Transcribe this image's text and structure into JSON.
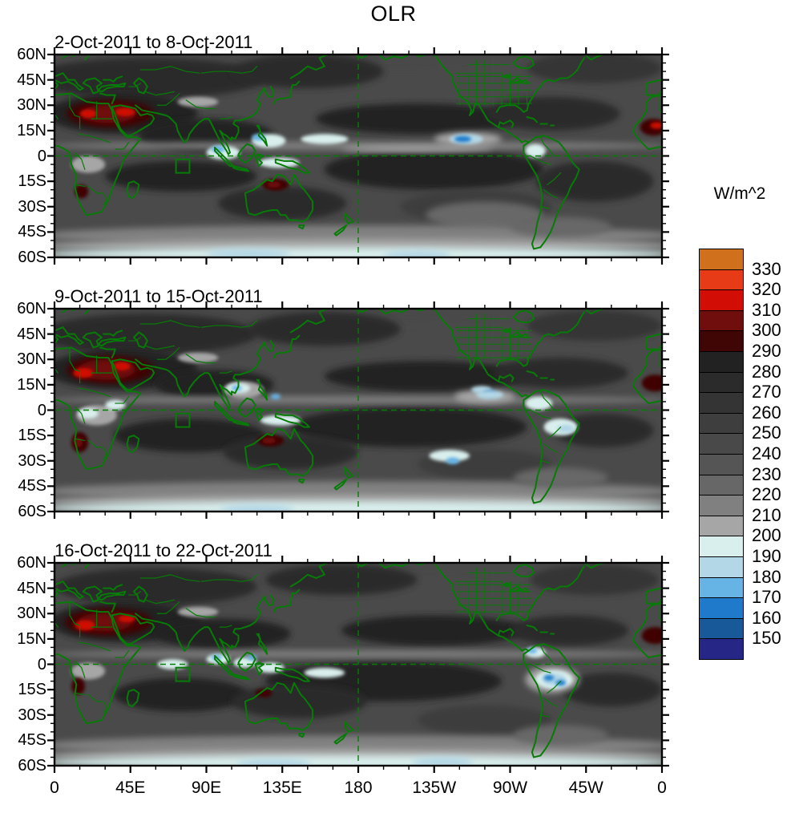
{
  "chart_data": {
    "type": "heatmap",
    "subtype": "filled-contour-map-panels",
    "title": "OLR",
    "units_label": "W/m^2",
    "lon_range": [
      0,
      360
    ],
    "lat_range": [
      -60,
      60
    ],
    "axes": {
      "lon_tick_labels": [
        "0",
        "45E",
        "90E",
        "135E",
        "180",
        "135W",
        "90W",
        "45W",
        "0"
      ],
      "lon_tick_degrees": [
        0,
        45,
        90,
        135,
        180,
        225,
        270,
        315,
        360
      ],
      "lon_minor_step": 15,
      "lat_tick_labels": [
        "60N",
        "45N",
        "30N",
        "15N",
        "0",
        "15S",
        "30S",
        "45S",
        "60S"
      ],
      "lat_tick_degrees": [
        60,
        45,
        30,
        15,
        0,
        -15,
        -30,
        -45,
        -60
      ],
      "lat_minor_step": 5
    },
    "colorbar": {
      "unit_label": "W/m^2",
      "tick_labels": [
        "330",
        "320",
        "310",
        "300",
        "290",
        "280",
        "270",
        "260",
        "250",
        "240",
        "230",
        "220",
        "210",
        "200",
        "190",
        "180",
        "170",
        "160",
        "150"
      ],
      "colors_top_to_bottom": [
        "#d0701d",
        "#e73b17",
        "#d20d05",
        "#700d0d",
        "#400505",
        "#222222",
        "#2b2b2b",
        "#343434",
        "#3e3e3e",
        "#494949",
        "#555555",
        "#676767",
        "#808080",
        "#a6a6a6",
        "#d9efed",
        "#b3d7e6",
        "#66b3e6",
        "#1f7acc",
        "#185a99",
        "#262687"
      ]
    },
    "palette": {
      "330": "#d0701d",
      "320": "#e73b17",
      "310": "#d20d05",
      "300": "#700d0d",
      "290": "#400505",
      "280": "#222222",
      "270": "#2b2b2b",
      "260": "#343434",
      "250": "#3e3e3e",
      "240": "#494949",
      "230": "#555555",
      "220": "#676767",
      "210": "#808080",
      "200": "#a6a6a6",
      "190": "#d9efed",
      "180": "#b3d7e6",
      "170": "#66b3e6",
      "160": "#1f7acc",
      "150": "#185a99",
      "140": "#262687"
    },
    "map_style": {
      "base_gray": "#4a4a4a",
      "coastline_color": "#077b07",
      "frame_color": "#000000",
      "dashed_reference_color": "#077b07"
    },
    "region_box": {
      "lon_min": 72,
      "lon_max": 80,
      "lat_min": -10,
      "lat_max": -2
    },
    "panels": [
      {
        "title": "2-Oct-2011 to 8-Oct-2011",
        "features": [
          [
            "240",
            180,
            58,
            200,
            7
          ],
          [
            "270",
            55,
            46,
            70,
            12
          ],
          [
            "270",
            150,
            50,
            45,
            10
          ],
          [
            "260",
            320,
            52,
            40,
            9
          ],
          [
            "280",
            40,
            25,
            45,
            12
          ],
          [
            "280",
            90,
            12,
            40,
            10
          ],
          [
            "280",
            215,
            22,
            60,
            9
          ],
          [
            "270",
            295,
            25,
            40,
            10
          ],
          [
            "280",
            225,
            -8,
            65,
            12
          ],
          [
            "280",
            75,
            -12,
            45,
            9
          ],
          [
            "270",
            135,
            -28,
            38,
            10
          ],
          [
            "270",
            320,
            -15,
            35,
            12
          ],
          [
            "250",
            250,
            -30,
            45,
            10
          ],
          [
            "220",
            255,
            -35,
            35,
            8
          ],
          [
            "210",
            180,
            -47,
            190,
            6
          ],
          [
            "200",
            180,
            -53,
            190,
            4
          ],
          [
            "190",
            180,
            -58,
            190,
            4
          ],
          [
            "180",
            115,
            -58,
            25,
            3
          ],
          [
            "180",
            215,
            -59,
            20,
            3
          ],
          [
            "210",
            180,
            6,
            185,
            2.4
          ],
          [
            "200",
            215,
            4,
            45,
            1.8
          ],
          [
            "200",
            20,
            -5,
            10,
            5
          ],
          [
            "190",
            100,
            2,
            10,
            4
          ],
          [
            "170",
            97,
            4,
            4,
            2
          ],
          [
            "190",
            127,
            9,
            10,
            4
          ],
          [
            "170",
            121,
            11,
            4,
            2
          ],
          [
            "190",
            160,
            10,
            14,
            3
          ],
          [
            "190",
            133,
            -4,
            12,
            3
          ],
          [
            "200",
            245,
            10,
            20,
            4
          ],
          [
            "180",
            244,
            10,
            10,
            3
          ],
          [
            "160",
            242,
            10,
            5,
            1.8
          ],
          [
            "190",
            285,
            3,
            6,
            4
          ],
          [
            "200",
            85,
            32,
            12,
            3
          ],
          [
            "220",
            300,
            -42,
            30,
            6
          ],
          [
            "290",
            33,
            25,
            26,
            8
          ],
          [
            "300",
            32,
            25,
            16,
            5.5
          ],
          [
            "310",
            20,
            25,
            5,
            2.5
          ],
          [
            "310",
            42,
            26,
            6,
            2.5
          ],
          [
            "290",
            355,
            17,
            8,
            5
          ],
          [
            "310",
            357,
            18,
            4,
            2
          ],
          [
            "290",
            131,
            -17,
            8,
            3.5
          ],
          [
            "300",
            130,
            -17,
            4,
            1.8
          ],
          [
            "290",
            16,
            -21,
            4,
            4
          ]
        ]
      },
      {
        "title": "9-Oct-2011 to 15-Oct-2011",
        "features": [
          [
            "240",
            180,
            58,
            200,
            7
          ],
          [
            "270",
            55,
            45,
            65,
            12
          ],
          [
            "270",
            160,
            48,
            45,
            10
          ],
          [
            "260",
            320,
            50,
            40,
            9
          ],
          [
            "280",
            40,
            24,
            45,
            12
          ],
          [
            "280",
            95,
            15,
            35,
            9
          ],
          [
            "280",
            220,
            20,
            60,
            9
          ],
          [
            "270",
            300,
            22,
            40,
            9
          ],
          [
            "280",
            210,
            -10,
            70,
            12
          ],
          [
            "280",
            80,
            -15,
            45,
            10
          ],
          [
            "270",
            140,
            -25,
            40,
            10
          ],
          [
            "270",
            325,
            -12,
            30,
            10
          ],
          [
            "250",
            255,
            -32,
            40,
            9
          ],
          [
            "210",
            180,
            -48,
            190,
            6
          ],
          [
            "200",
            180,
            -54,
            190,
            4
          ],
          [
            "190",
            180,
            -58,
            190,
            4
          ],
          [
            "180",
            120,
            -59,
            22,
            3
          ],
          [
            "210",
            180,
            6,
            185,
            2.2
          ],
          [
            "200",
            25,
            -3,
            12,
            6
          ],
          [
            "190",
            20,
            -2,
            6,
            3
          ],
          [
            "190",
            36,
            3,
            6,
            3
          ],
          [
            "200",
            112,
            12,
            12,
            5
          ],
          [
            "190",
            109,
            13,
            7,
            3
          ],
          [
            "170",
            108,
            13,
            3,
            1.6
          ],
          [
            "170",
            131,
            8,
            3,
            1.6
          ],
          [
            "190",
            134,
            -6,
            12,
            3
          ],
          [
            "200",
            255,
            8,
            18,
            4
          ],
          [
            "180",
            253,
            12,
            6,
            2.2
          ],
          [
            "160",
            258,
            10,
            4,
            1.6
          ],
          [
            "180",
            258,
            9,
            8,
            2.5
          ],
          [
            "190",
            234,
            -27,
            12,
            3.5
          ],
          [
            "170",
            236,
            -30,
            4,
            2
          ],
          [
            "190",
            287,
            4,
            8,
            4
          ],
          [
            "190",
            300,
            -10,
            10,
            5
          ],
          [
            "180",
            303,
            -11,
            5,
            2.5
          ],
          [
            "200",
            85,
            31,
            12,
            3
          ],
          [
            "220",
            300,
            -40,
            28,
            6
          ],
          [
            "290",
            33,
            24,
            26,
            8
          ],
          [
            "300",
            31,
            24,
            17,
            6
          ],
          [
            "310",
            17,
            22,
            6,
            3
          ],
          [
            "310",
            40,
            26,
            5,
            2.5
          ],
          [
            "290",
            356,
            16,
            8,
            5
          ],
          [
            "290",
            128,
            -18,
            8,
            3.5
          ],
          [
            "300",
            127,
            -18,
            4,
            1.8
          ],
          [
            "290",
            15,
            -19,
            5,
            6
          ],
          [
            "300",
            14,
            -19,
            2.5,
            3
          ]
        ]
      },
      {
        "title": "16-Oct-2011 to 22-Oct-2011",
        "features": [
          [
            "240",
            180,
            58,
            200,
            7
          ],
          [
            "270",
            60,
            46,
            60,
            11
          ],
          [
            "270",
            170,
            50,
            45,
            9
          ],
          [
            "260",
            320,
            50,
            38,
            9
          ],
          [
            "280",
            42,
            25,
            45,
            12
          ],
          [
            "280",
            100,
            18,
            40,
            9
          ],
          [
            "280",
            225,
            20,
            55,
            9
          ],
          [
            "270",
            305,
            20,
            35,
            9
          ],
          [
            "280",
            195,
            -10,
            70,
            12
          ],
          [
            "280",
            75,
            -18,
            40,
            10
          ],
          [
            "270",
            145,
            -22,
            40,
            10
          ],
          [
            "270",
            330,
            -15,
            30,
            10
          ],
          [
            "250",
            255,
            -33,
            40,
            9
          ],
          [
            "210",
            180,
            -48,
            190,
            6
          ],
          [
            "200",
            180,
            -54,
            190,
            4
          ],
          [
            "190",
            180,
            -58,
            190,
            4
          ],
          [
            "180",
            130,
            -59,
            22,
            3
          ],
          [
            "180",
            230,
            -58,
            18,
            3
          ],
          [
            "210",
            180,
            6,
            185,
            2.2
          ],
          [
            "200",
            20,
            -4,
            10,
            5
          ],
          [
            "190",
            70,
            0,
            9,
            3
          ],
          [
            "190",
            97,
            3,
            7,
            3
          ],
          [
            "170",
            96,
            4,
            3,
            1.6
          ],
          [
            "190",
            113,
            1,
            7,
            3
          ],
          [
            "170",
            117,
            4,
            3,
            1.5
          ],
          [
            "190",
            128,
            -2,
            8,
            3
          ],
          [
            "190",
            160,
            -5,
            12,
            3
          ],
          [
            "200",
            295,
            -9,
            16,
            8
          ],
          [
            "190",
            296,
            -9,
            11,
            5.5
          ],
          [
            "180",
            296,
            -9,
            7,
            3.5
          ],
          [
            "160",
            293,
            -8,
            3,
            1.7
          ],
          [
            "160",
            300,
            -11,
            3,
            1.7
          ],
          [
            "190",
            285,
            7,
            6,
            3
          ],
          [
            "170",
            283,
            8,
            3,
            1.6
          ],
          [
            "200",
            85,
            31,
            12,
            3
          ],
          [
            "220",
            300,
            -42,
            28,
            6
          ],
          [
            "290",
            32,
            25,
            26,
            8
          ],
          [
            "300",
            30,
            25,
            16,
            5.5
          ],
          [
            "310",
            18,
            23,
            6,
            3
          ],
          [
            "310",
            43,
            27,
            5,
            2.2
          ],
          [
            "290",
            356,
            17,
            8,
            5
          ],
          [
            "290",
            124,
            -17,
            5,
            2.5
          ],
          [
            "290",
            14,
            -13,
            4,
            5
          ]
        ]
      }
    ]
  }
}
